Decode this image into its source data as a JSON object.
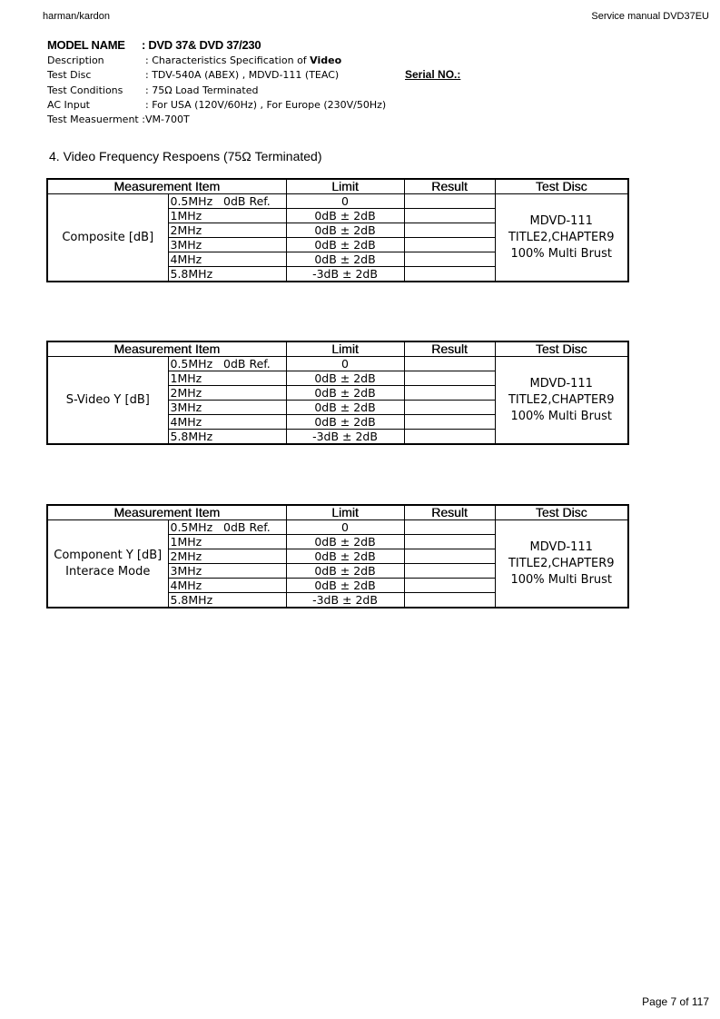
{
  "header": {
    "left": "harman/kardon",
    "right": "Service manual DVD37EU"
  },
  "model": {
    "label": "MODEL NAME",
    "value": ": DVD 37& DVD 37/230"
  },
  "info": [
    {
      "key": "Description",
      "value": ": Characteristics Specification of ",
      "bold": "Video"
    },
    {
      "key": "Test Disc",
      "value": ": TDV-540A (ABEX)   , MDVD-111 (TEAC)"
    },
    {
      "key": "Test Conditions",
      "value": ": 75Ω Load Terminated"
    },
    {
      "key": "AC Input",
      "value": ": For USA (120V/60Hz)  , For Europe (230V/50Hz)"
    },
    {
      "key": "Test Measuerment :",
      "value": "VM-700T"
    }
  ],
  "serial_label": "Serial NO.:",
  "section_title": "4. Video Frequency Respoens (75Ω Terminated)",
  "columns": [
    "Measurement Item",
    "Limit",
    "Result",
    "Test Disc"
  ],
  "tables": [
    {
      "item": "Composite [dB]",
      "rows": [
        [
          "0.5MHz   0dB Ref.",
          "0"
        ],
        [
          "1MHz",
          "0dB ± 2dB"
        ],
        [
          "2MHz",
          "0dB ± 2dB"
        ],
        [
          "3MHz",
          "0dB ± 2dB"
        ],
        [
          "4MHz",
          "0dB ± 2dB"
        ],
        [
          "5.8MHz",
          "-3dB ± 2dB"
        ]
      ],
      "disc": "MDVD-111 TITLE2,CHAPTER9 100% Multi Brust"
    },
    {
      "item": "S-Video Y [dB]",
      "rows": [
        [
          "0.5MHz   0dB Ref.",
          "0"
        ],
        [
          "1MHz",
          "0dB ± 2dB"
        ],
        [
          "2MHz",
          "0dB ± 2dB"
        ],
        [
          "3MHz",
          "0dB ± 2dB"
        ],
        [
          "4MHz",
          "0dB ± 2dB"
        ],
        [
          "5.8MHz",
          "-3dB ± 2dB"
        ]
      ],
      "disc": "MDVD-111 TITLE2,CHAPTER9 100% Multi Brust"
    },
    {
      "item": "Component Y [dB] Interace Mode",
      "rows": [
        [
          "0.5MHz   0dB Ref.",
          "0"
        ],
        [
          "1MHz",
          "0dB ± 2dB"
        ],
        [
          "2MHz",
          "0dB ± 2dB"
        ],
        [
          "3MHz",
          "0dB ± 2dB"
        ],
        [
          "4MHz",
          "0dB ± 2dB"
        ],
        [
          "5.8MHz",
          "-3dB ± 2dB"
        ]
      ],
      "disc": "MDVD-111 TITLE2,CHAPTER9 100% Multi Brust"
    }
  ],
  "footer": "Page 7 of 117"
}
